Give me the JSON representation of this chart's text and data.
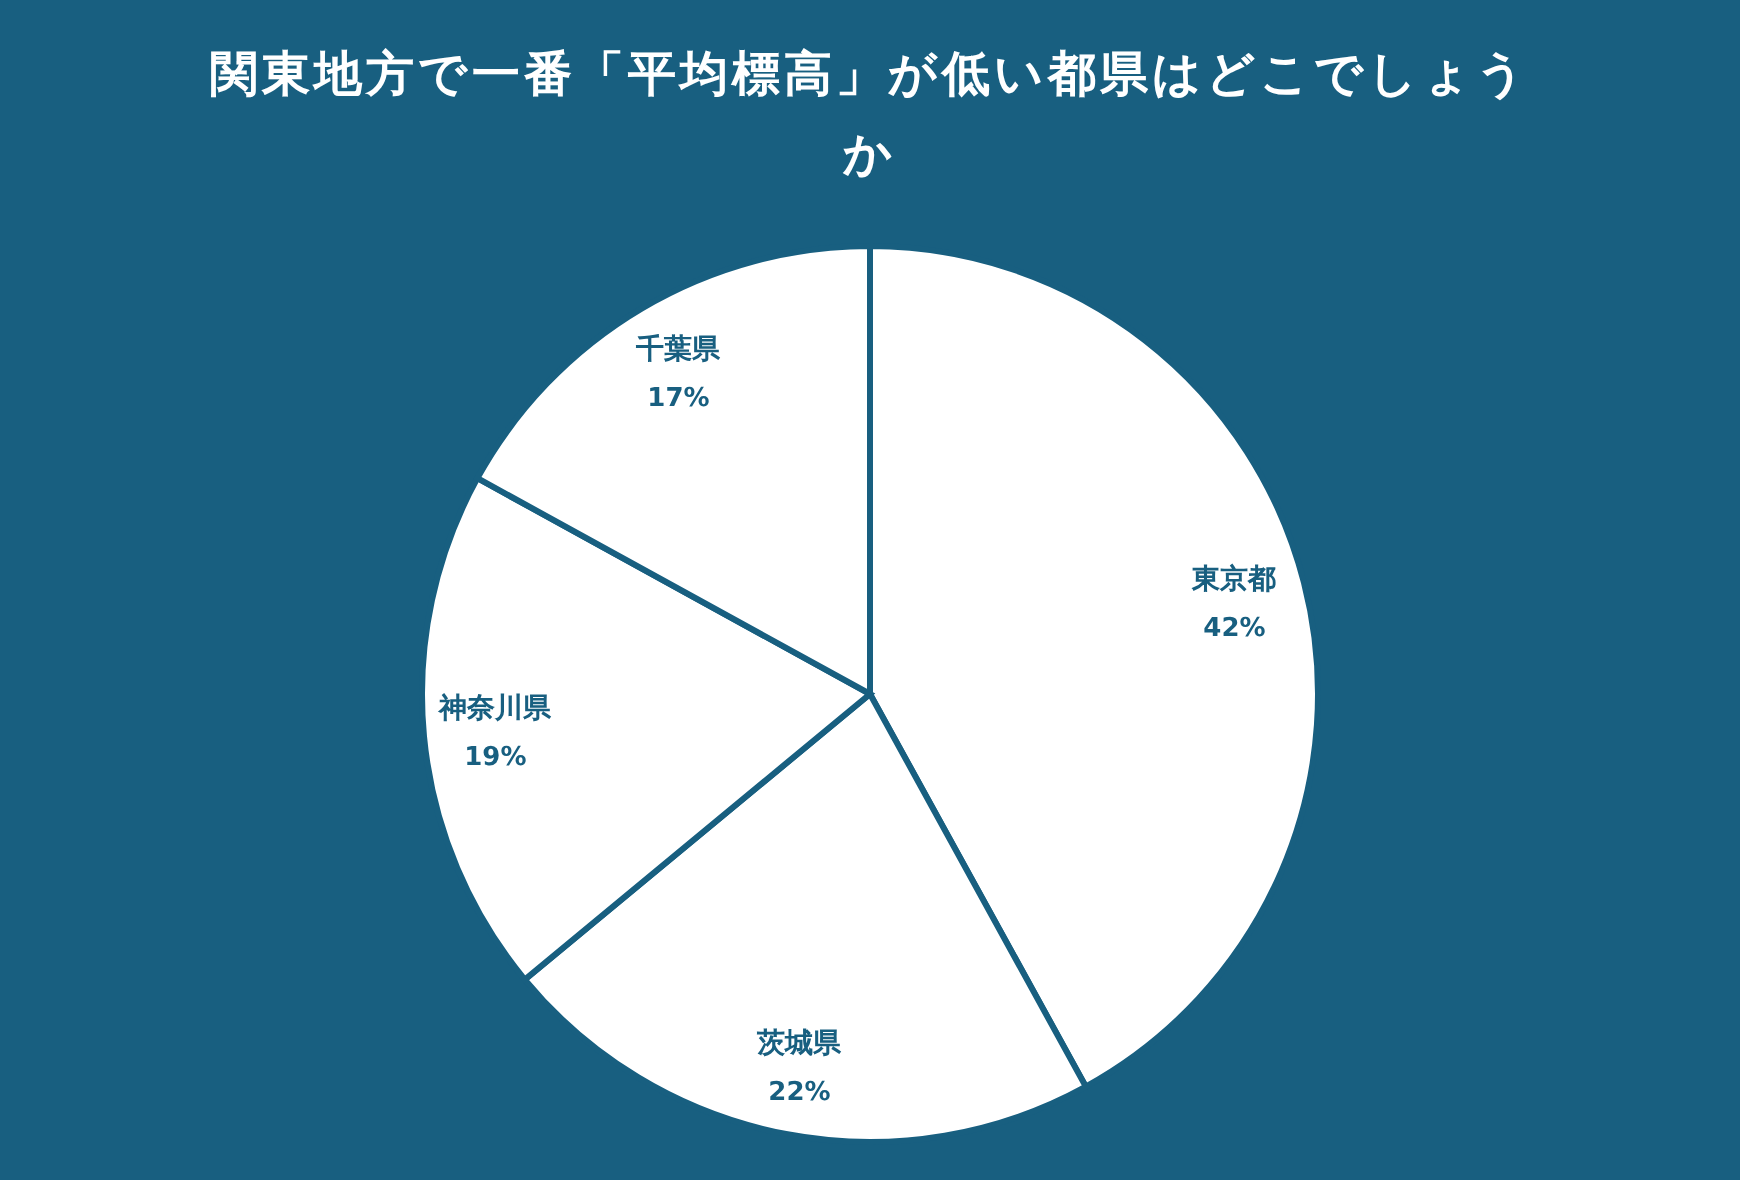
{
  "chart_data": {
    "type": "pie",
    "title": "関東地方で一番「平均標高」が低い都県はどこでしょうか",
    "categories": [
      "東京都",
      "茨城県",
      "神奈川県",
      "千葉県"
    ],
    "values": [
      42,
      22,
      19,
      17
    ],
    "colors": [
      "#ffffff",
      "#ffffff",
      "#ffffff",
      "#ffffff"
    ],
    "value_labels": [
      "42%",
      "22%",
      "19%",
      "17%"
    ]
  }
}
